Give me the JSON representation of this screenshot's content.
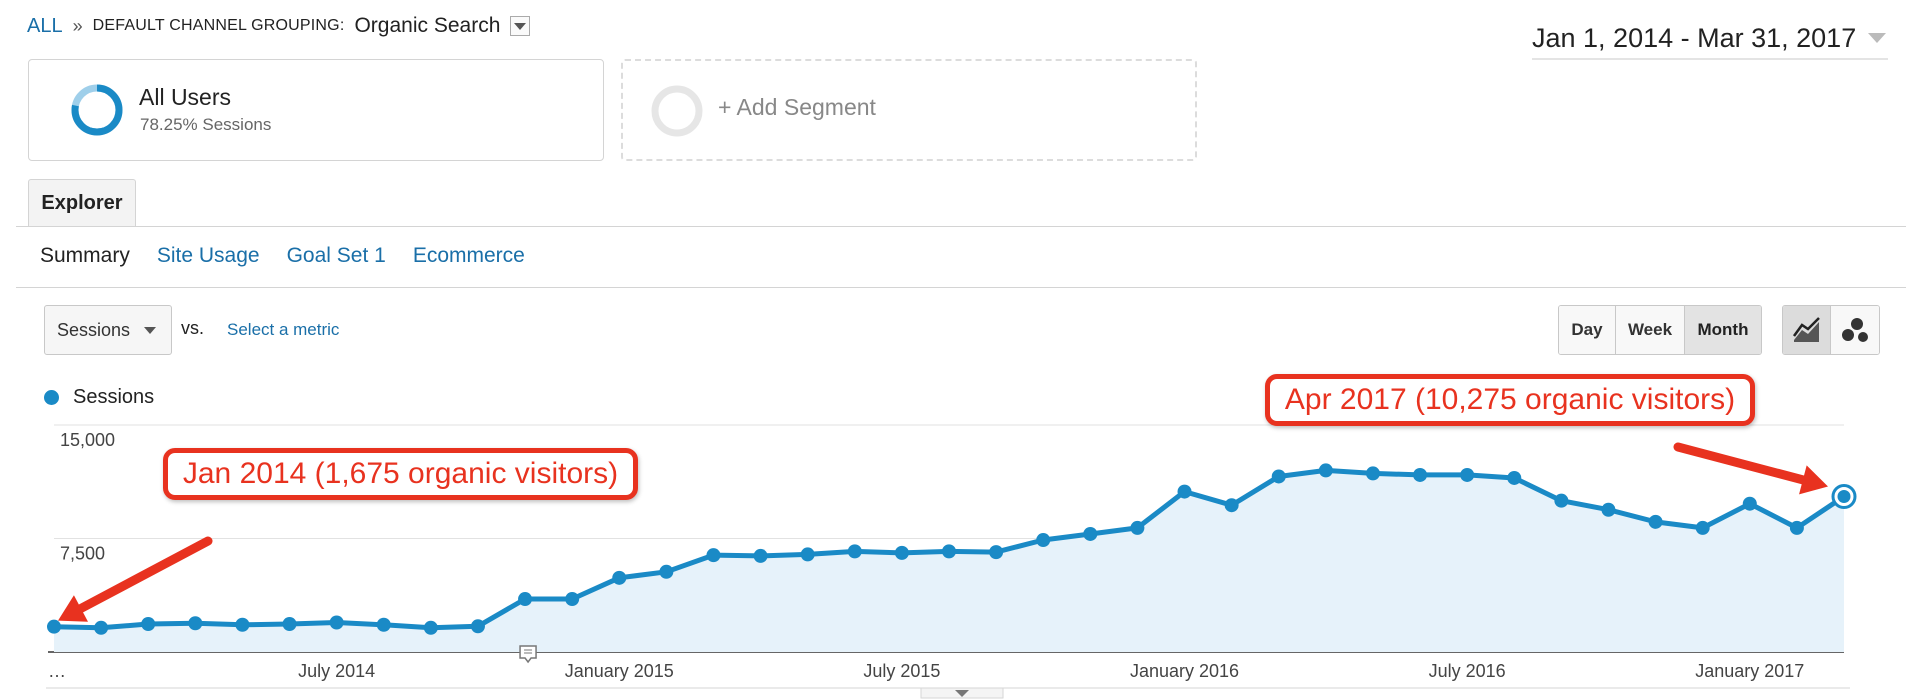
{
  "breadcrumb": {
    "all": "ALL",
    "separator": "»",
    "grouping_label": "DEFAULT CHANNEL GROUPING:",
    "grouping_value": "Organic Search"
  },
  "date_range": "Jan 1, 2014 - Mar 31, 2017",
  "segments": {
    "primary": {
      "title": "All Users",
      "subtitle": "78.25% Sessions"
    },
    "add_label": "+ Add Segment"
  },
  "tabs": {
    "explorer": "Explorer"
  },
  "subtabs": {
    "summary": "Summary",
    "site_usage": "Site Usage",
    "goal_set": "Goal Set 1",
    "ecommerce": "Ecommerce"
  },
  "metric": {
    "selected": "Sessions",
    "vs": "vs.",
    "select_metric": "Select a metric"
  },
  "period_buttons": {
    "day": "Day",
    "week": "Week",
    "month": "Month",
    "active": "month"
  },
  "icons": {
    "line_view": "line-chart-icon",
    "motion_view": "motion-chart-icon",
    "dropdown": "chevron-down-icon",
    "annotation": "annotation-icon"
  },
  "colors": {
    "series": "#1a8ac6",
    "fill": "#e6f2fa",
    "callout": "#e8321f",
    "link": "#1a6fa8"
  },
  "chart_data": {
    "type": "area",
    "legend": [
      "Sessions"
    ],
    "series": [
      {
        "name": "Sessions",
        "values": [
          1675,
          1600,
          1850,
          1900,
          1800,
          1850,
          1950,
          1800,
          1600,
          1700,
          3500,
          3500,
          4900,
          5300,
          6400,
          6350,
          6450,
          6650,
          6550,
          6650,
          6600,
          7400,
          7800,
          8200,
          10600,
          9700,
          11600,
          12000,
          11800,
          11700,
          11700,
          11500,
          10000,
          9400,
          8600,
          8200,
          9800,
          8200,
          10275
        ]
      }
    ],
    "yticks": [
      "15,000",
      "7,500"
    ],
    "ylim": [
      0,
      15000
    ],
    "xticks": [
      {
        "label": "…",
        "index": 0
      },
      {
        "label": "July 2014",
        "index": 6
      },
      {
        "label": "January 2015",
        "index": 12
      },
      {
        "label": "July 2015",
        "index": 18
      },
      {
        "label": "January 2016",
        "index": 24
      },
      {
        "label": "July 2016",
        "index": 30
      },
      {
        "label": "January 2017",
        "index": 36
      }
    ],
    "annotation_marker_index": 10,
    "annotations": {
      "start": "Jan 2014 (1,675 organic visitors)",
      "end": "Apr 2017 (10,275 organic visitors)"
    },
    "grid": true
  }
}
